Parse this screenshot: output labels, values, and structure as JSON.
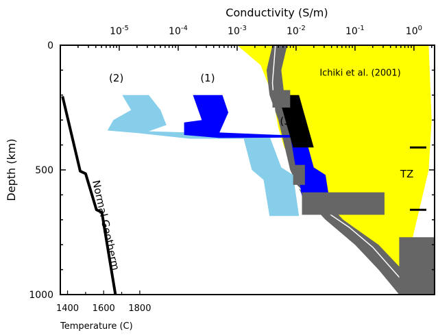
{
  "chart_data": {
    "type": "line",
    "title": "",
    "top_axis": {
      "label": "Conductivity (S/m)",
      "scale": "log",
      "range": [
        -6,
        0.35
      ],
      "ticks": [
        {
          "exp": -5,
          "text": "10",
          "sup": "-5"
        },
        {
          "exp": -4,
          "text": "10",
          "sup": "-4"
        },
        {
          "exp": -3,
          "text": "10",
          "sup": "-3"
        },
        {
          "exp": -2,
          "text": "10",
          "sup": "-2"
        },
        {
          "exp": -1,
          "text": "10",
          "sup": "-1"
        },
        {
          "exp": 0,
          "text": "10",
          "sup": "0"
        }
      ]
    },
    "y_axis": {
      "label": "Depth (km)",
      "range": [
        0,
        1000
      ],
      "ticks": [
        {
          "value": 0,
          "text": "0"
        },
        {
          "value": 500,
          "text": "500"
        },
        {
          "value": 1000,
          "text": "1000"
        }
      ]
    },
    "bottom_axis": {
      "label": "Temperature (C)",
      "range": [
        1360,
        1880
      ],
      "ticks": [
        {
          "value": 1400,
          "text": "1400"
        },
        {
          "value": 1600,
          "text": "1600"
        },
        {
          "value": 1800,
          "text": "1800"
        }
      ]
    },
    "annotations": [
      {
        "text": "(2)",
        "log_s": -5.05,
        "depth": 145
      },
      {
        "text": "(1)",
        "log_s": -3.5,
        "depth": 145
      },
      {
        "text": "(3)",
        "log_s": -2.15,
        "depth": 318
      },
      {
        "text": "Ichiki et al. (2001)",
        "log_s": -1.6,
        "depth": 122
      },
      {
        "text": "TZ",
        "log_s": -0.12,
        "depth": 530
      }
    ],
    "tz_marks": [
      410,
      660
    ],
    "series": [
      {
        "name": "Normal Geotherm",
        "kind": "temperature",
        "color": "#000000",
        "points": [
          [
            1372,
            205
          ],
          [
            1470,
            505
          ],
          [
            1500,
            515
          ],
          [
            1560,
            660
          ],
          [
            1590,
            670
          ],
          [
            1665,
            1000
          ]
        ]
      },
      {
        "kind": "band",
        "color": "#ffff00",
        "left": [
          [
            -3.0,
            0
          ],
          [
            -2.6,
            80
          ],
          [
            -2.4,
            200
          ],
          [
            -2.3,
            330
          ],
          [
            -2.2,
            410
          ],
          [
            -2.0,
            500
          ],
          [
            -1.75,
            570
          ],
          [
            -1.5,
            640
          ],
          [
            -1.3,
            700
          ],
          [
            -1.0,
            760
          ],
          [
            -0.6,
            870
          ],
          [
            -0.3,
            960
          ],
          [
            0.1,
            1000
          ]
        ],
        "right": [
          [
            0.25,
            0
          ],
          [
            0.3,
            300
          ],
          [
            0.25,
            500
          ],
          [
            0.15,
            600
          ],
          [
            0.05,
            700
          ],
          [
            -0.05,
            800
          ],
          [
            0.0,
            900
          ],
          [
            0.25,
            1000
          ]
        ]
      },
      {
        "kind": "band",
        "color": "#666666",
        "left": [
          [
            -2.4,
            0
          ],
          [
            -2.5,
            100
          ],
          [
            -2.45,
            200
          ],
          [
            -2.3,
            300
          ],
          [
            -2.2,
            400
          ],
          [
            -2.1,
            500
          ],
          [
            -1.9,
            600
          ],
          [
            -1.5,
            700
          ],
          [
            -1.0,
            800
          ],
          [
            -0.6,
            900
          ],
          [
            -0.25,
            1000
          ]
        ],
        "right": [
          [
            -2.15,
            0
          ],
          [
            -2.25,
            100
          ],
          [
            -2.2,
            200
          ],
          [
            -2.05,
            300
          ],
          [
            -1.95,
            400
          ],
          [
            -1.8,
            500
          ],
          [
            -1.6,
            600
          ],
          [
            -1.2,
            700
          ],
          [
            -0.6,
            800
          ],
          [
            -0.2,
            900
          ],
          [
            0.0,
            1000
          ]
        ]
      },
      {
        "kind": "line",
        "color": "#ffffff",
        "points": [
          [
            -2.35,
            0
          ],
          [
            -2.4,
            150
          ],
          [
            -2.35,
            300
          ],
          [
            -2.25,
            450
          ],
          [
            -2.0,
            560
          ],
          [
            -1.6,
            650
          ],
          [
            -1.1,
            730
          ],
          [
            -0.7,
            810
          ],
          [
            -0.4,
            890
          ],
          [
            -0.1,
            970
          ],
          [
            0.0,
            1000
          ]
        ]
      },
      {
        "kind": "polygon",
        "name": "(2)",
        "color": "#87ceeb",
        "points": [
          [
            -4.95,
            200
          ],
          [
            -4.5,
            200
          ],
          [
            -4.3,
            260
          ],
          [
            -4.2,
            320
          ],
          [
            -4.5,
            345
          ],
          [
            -3.8,
            350
          ],
          [
            -2.8,
            355
          ],
          [
            -2.2,
            360
          ],
          [
            -2.2,
            370
          ],
          [
            -2.8,
            375
          ],
          [
            -3.8,
            375
          ],
          [
            -4.7,
            352
          ],
          [
            -5.2,
            342
          ],
          [
            -5.1,
            300
          ],
          [
            -4.8,
            260
          ]
        ]
      },
      {
        "kind": "polygon",
        "name": "(2) lower",
        "color": "#87ceeb",
        "points": [
          [
            -2.9,
            365
          ],
          [
            -2.45,
            365
          ],
          [
            -2.25,
            490
          ],
          [
            -2.05,
            520
          ],
          [
            -1.95,
            685
          ],
          [
            -2.45,
            685
          ],
          [
            -2.55,
            540
          ],
          [
            -2.75,
            500
          ]
        ]
      },
      {
        "kind": "polygon",
        "name": "(1)",
        "color": "#0000ff",
        "points": [
          [
            -3.75,
            200
          ],
          [
            -3.25,
            200
          ],
          [
            -3.15,
            270
          ],
          [
            -3.3,
            350
          ],
          [
            -2.3,
            360
          ],
          [
            -2.1,
            360
          ],
          [
            -2.1,
            370
          ],
          [
            -3.3,
            372
          ],
          [
            -3.9,
            360
          ],
          [
            -3.9,
            310
          ],
          [
            -3.6,
            300
          ]
        ]
      },
      {
        "kind": "polygon",
        "name": "(1) lower",
        "color": "#0000ff",
        "points": [
          [
            -2.1,
            360
          ],
          [
            -1.85,
            360
          ],
          [
            -1.7,
            490
          ],
          [
            -1.5,
            520
          ],
          [
            -1.4,
            670
          ],
          [
            -1.85,
            670
          ],
          [
            -1.95,
            540
          ],
          [
            -2.0,
            500
          ]
        ]
      },
      {
        "kind": "polygon",
        "name": "(3)",
        "color": "#000000",
        "points": [
          [
            -2.3,
            200
          ],
          [
            -1.95,
            200
          ],
          [
            -1.7,
            410
          ],
          [
            -2.05,
            410
          ]
        ]
      },
      {
        "kind": "step-bands",
        "color": "#666666",
        "rects": [
          [
            -2.4,
            -2.1,
            180,
            250
          ],
          [
            -2.05,
            -1.85,
            480,
            560
          ],
          [
            -1.9,
            -0.5,
            590,
            680
          ],
          [
            -0.25,
            0.35,
            770,
            1000
          ]
        ]
      }
    ]
  }
}
